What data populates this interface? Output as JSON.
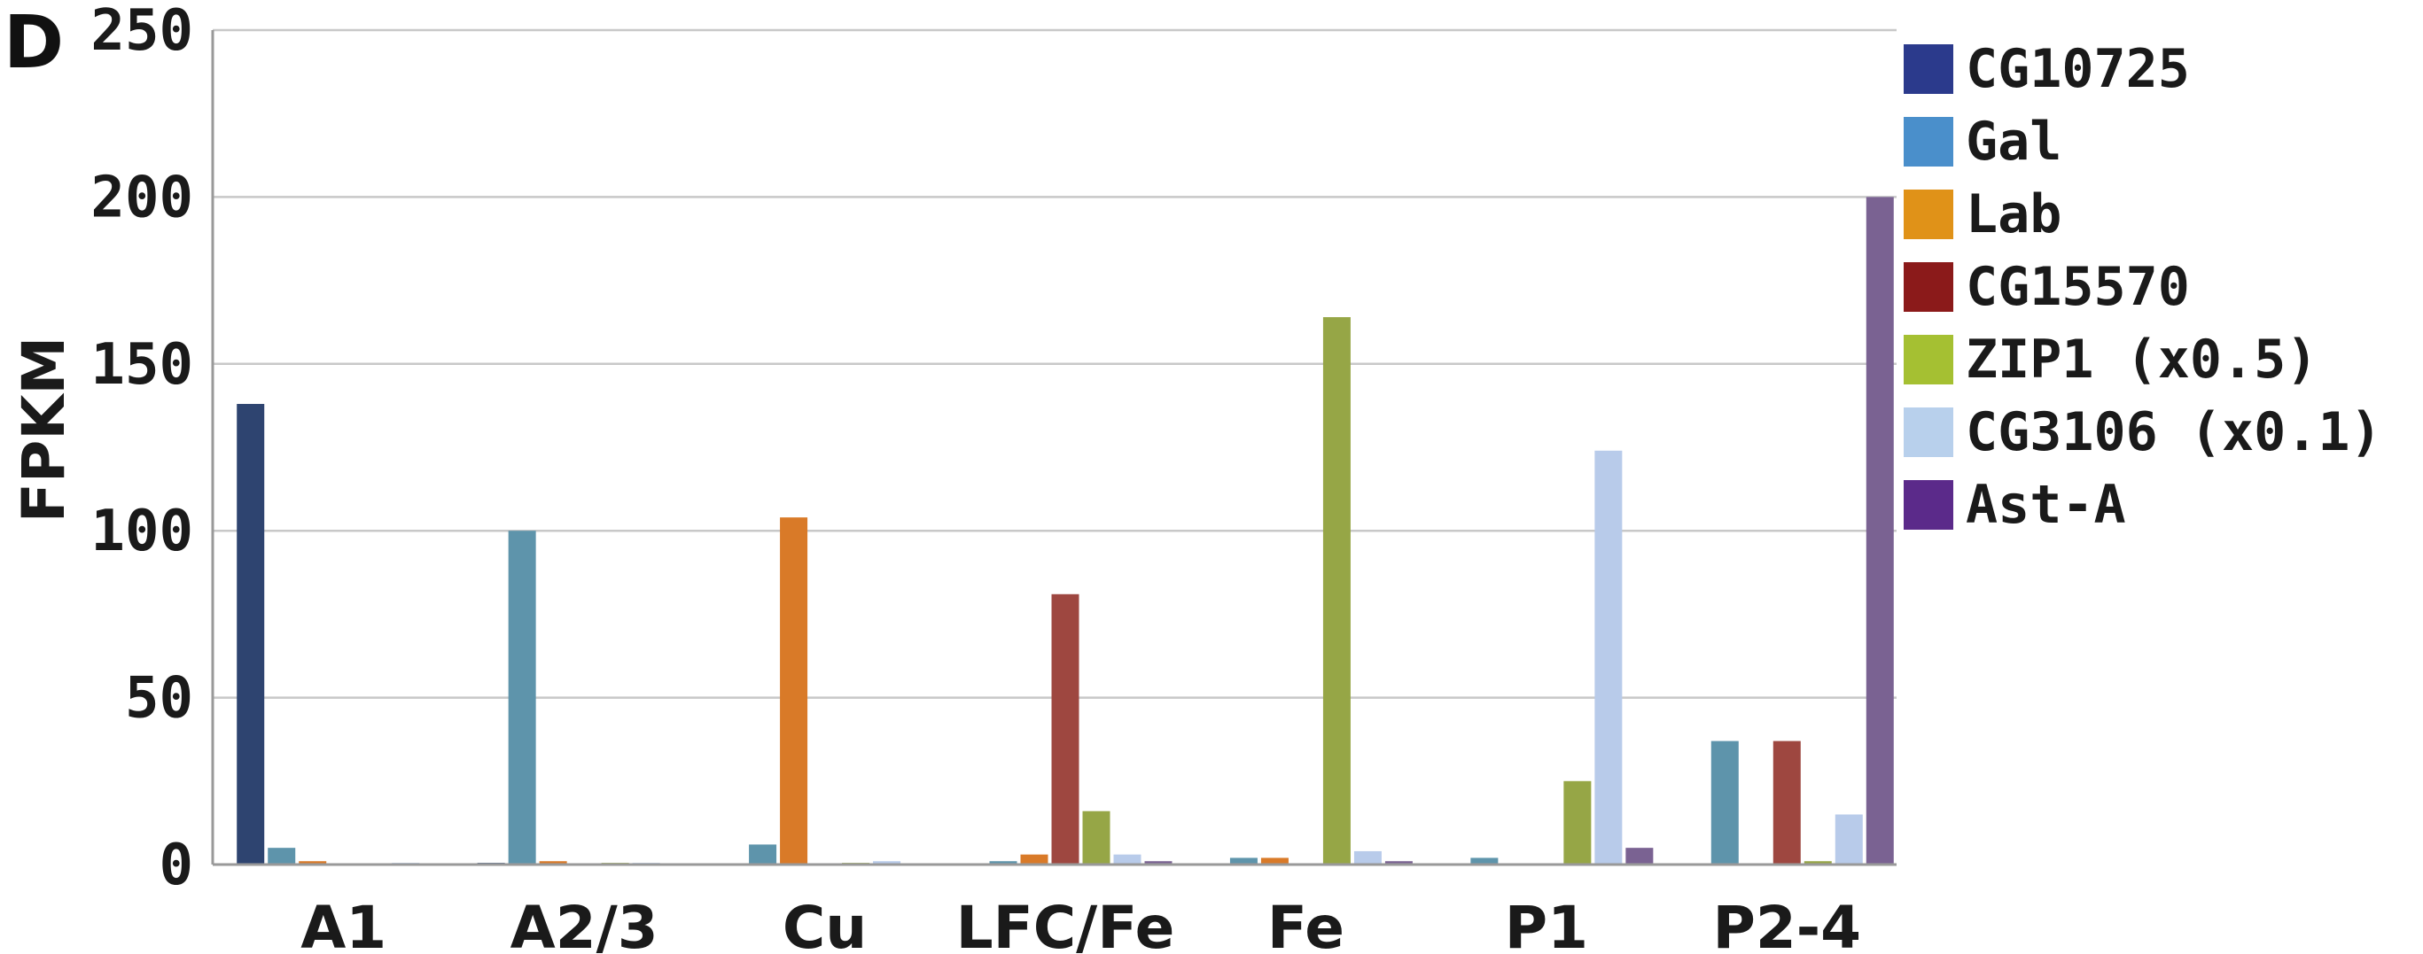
{
  "panel_label": "D",
  "chart_data": {
    "type": "bar",
    "title": "",
    "xlabel": "",
    "ylabel": "FPKM",
    "ylim": [
      0,
      250
    ],
    "yticks": [
      0,
      50,
      100,
      150,
      200,
      250
    ],
    "grid": true,
    "legend_position": "right",
    "categories": [
      "A1",
      "A2/3",
      "Cu",
      "LFC/Fe",
      "Fe",
      "P1",
      "P2-4"
    ],
    "series": [
      {
        "name": "CG10725",
        "color": "#2e4470",
        "legend_color": "#2b3a8c",
        "values": [
          138,
          0.5,
          0,
          0,
          0,
          0,
          0
        ]
      },
      {
        "name": "Gal",
        "color": "#5e94ab",
        "legend_color": "#4a8fcb",
        "values": [
          5,
          100,
          6,
          1,
          2,
          2,
          37
        ]
      },
      {
        "name": "Lab",
        "color": "#d97a28",
        "legend_color": "#e09218",
        "values": [
          1,
          1,
          104,
          3,
          2,
          0,
          0
        ]
      },
      {
        "name": "CG15570",
        "color": "#9e4740",
        "legend_color": "#8b1a1a",
        "values": [
          0,
          0,
          0,
          81,
          0,
          0,
          37
        ]
      },
      {
        "name": "ZIP1 (x0.5)",
        "color": "#96a646",
        "legend_color": "#a5c032",
        "values": [
          0,
          0.5,
          0.5,
          16,
          164,
          25,
          1
        ]
      },
      {
        "name": "CG3106 (x0.1)",
        "color": "#b8cbea",
        "legend_color": "#b8d0ec",
        "values": [
          0.5,
          0.5,
          1,
          3,
          4,
          124,
          15
        ]
      },
      {
        "name": "Ast-A",
        "color": "#7a6292",
        "legend_color": "#5b2a8a",
        "values": [
          0,
          0,
          0,
          1,
          1,
          5,
          200
        ]
      }
    ]
  }
}
